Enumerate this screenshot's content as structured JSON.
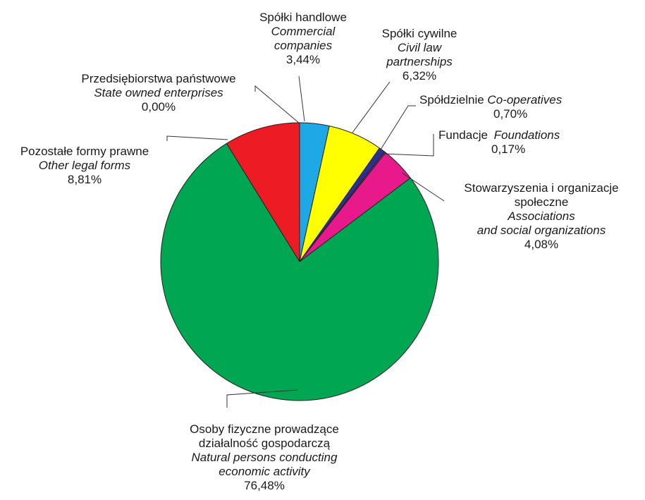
{
  "chart_data": {
    "type": "pie",
    "start_angle_deg": 0,
    "direction": "clockwise",
    "slices": [
      {
        "pl": "Spółki handlowe",
        "en": "Commercial companies",
        "en_lines": [
          "Commercial",
          "companies"
        ],
        "value": 3.44,
        "label": "3,44%",
        "color": "#1ea9e6"
      },
      {
        "pl": "Spółki cywilne",
        "en": "Civil law partnerships",
        "en_lines": [
          "Civil law",
          "partnerships"
        ],
        "value": 6.32,
        "label": "6,32%",
        "color": "#ffff00"
      },
      {
        "pl": "Spółdzielnie",
        "en": "Co-operatives",
        "value": 0.7,
        "label": "0,70%",
        "color": "#2e2f8f"
      },
      {
        "pl": "Fundacje",
        "en": "Foundations",
        "value": 0.17,
        "label": "0,17%",
        "color": "#6b3a9b"
      },
      {
        "pl": "Stowarzyszenia i organizacje społeczne",
        "pl_lines": [
          "Stowarzyszenia i organizacje",
          "społeczne"
        ],
        "en": "Associations and social organizations",
        "en_lines": [
          "Associations",
          "and social organizations"
        ],
        "value": 4.08,
        "label": "4,08%",
        "color": "#e8198b"
      },
      {
        "pl": "Osoby fizyczne prowadzące działalność gospodarczą",
        "pl_lines": [
          "Osoby fizyczne prowadzące",
          "działalność gospodarczą"
        ],
        "en": "Natural persons conducting economic activity",
        "en_lines": [
          "Natural persons conducting",
          "economic activity"
        ],
        "value": 76.48,
        "label": "76,48%",
        "color": "#00a651"
      },
      {
        "pl": "Pozostałe formy prawne",
        "en": "Other legal forms",
        "value": 8.81,
        "label": "8,81%",
        "color": "#ed1c24"
      },
      {
        "pl": "Przedsiębiorstwa państwowe",
        "en": "State owned enterprises",
        "value": 0.0,
        "label": "0,00%",
        "color": "#000000"
      }
    ]
  }
}
